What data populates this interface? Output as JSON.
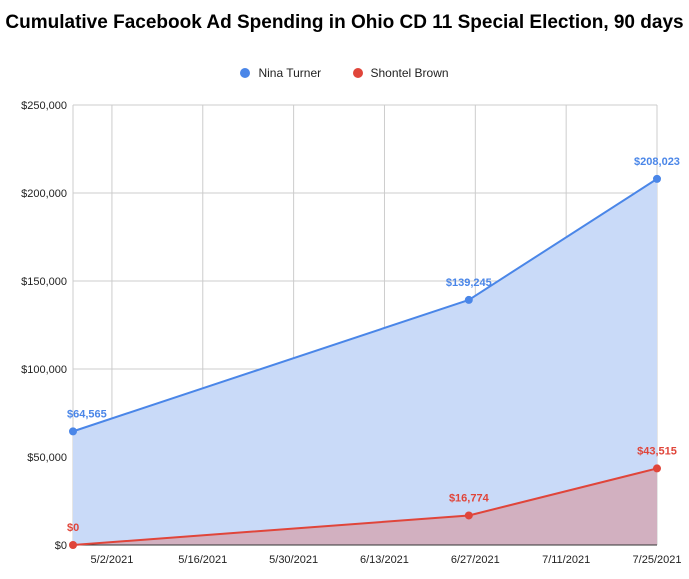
{
  "chart_data": {
    "type": "area",
    "title": "Cumulative Facebook Ad Spending in Ohio CD 11 Special Election, 90 days",
    "xlabel": "",
    "ylabel": "",
    "x_range": [
      "2021-04-26",
      "2021-07-25"
    ],
    "ylim": [
      0,
      250000
    ],
    "y_ticks": [
      {
        "value": 0,
        "label": "$0"
      },
      {
        "value": 50000,
        "label": "$50,000"
      },
      {
        "value": 100000,
        "label": "$100,000"
      },
      {
        "value": 150000,
        "label": "$150,000"
      },
      {
        "value": 200000,
        "label": "$200,000"
      },
      {
        "value": 250000,
        "label": "$250,000"
      }
    ],
    "x_ticks": [
      {
        "date": "2021-05-02",
        "label": "5/2/2021"
      },
      {
        "date": "2021-05-16",
        "label": "5/16/2021"
      },
      {
        "date": "2021-05-30",
        "label": "5/30/2021"
      },
      {
        "date": "2021-06-13",
        "label": "6/13/2021"
      },
      {
        "date": "2021-06-27",
        "label": "6/27/2021"
      },
      {
        "date": "2021-07-11",
        "label": "7/11/2021"
      },
      {
        "date": "2021-07-25",
        "label": "7/25/2021"
      }
    ],
    "grid": true,
    "legend_position": "top",
    "series": [
      {
        "name": "Nina Turner",
        "color": "#4a86e8",
        "fill": "#c9daf8",
        "points": [
          {
            "x": "2021-04-26",
            "y": 64565,
            "label": "$64,565"
          },
          {
            "x": "2021-06-26",
            "y": 139245,
            "label": "$139,245"
          },
          {
            "x": "2021-07-25",
            "y": 208023,
            "label": "$208,023"
          }
        ]
      },
      {
        "name": "Shontel Brown",
        "color": "#e0453a",
        "fill": "#d4a8b6",
        "points": [
          {
            "x": "2021-04-26",
            "y": 0,
            "label": "$0"
          },
          {
            "x": "2021-06-26",
            "y": 16774,
            "label": "$16,774"
          },
          {
            "x": "2021-07-25",
            "y": 43515,
            "label": "$43,515"
          }
        ]
      }
    ]
  }
}
